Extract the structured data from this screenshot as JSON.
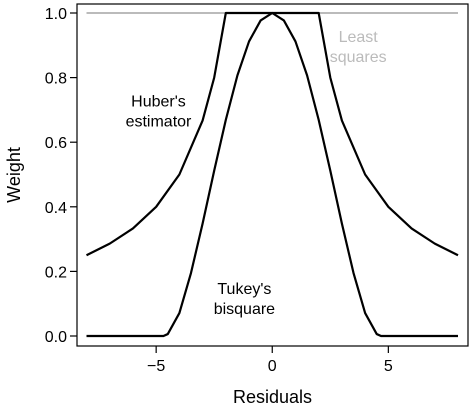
{
  "chart_data": {
    "type": "line",
    "xlabel": "Residuals",
    "ylabel": "Weight",
    "xlim": [
      -8,
      8
    ],
    "ylim": [
      0,
      1
    ],
    "xticks": [
      -5,
      0,
      5
    ],
    "xtick_labels": [
      "−5",
      "0",
      "5"
    ],
    "yticks": [
      0,
      0.2,
      0.4,
      0.6,
      0.8,
      1.0
    ],
    "ytick_labels": [
      "0.0",
      "0.2",
      "0.4",
      "0.6",
      "0.8",
      "1.0"
    ],
    "grid": false,
    "series": [
      {
        "name": "Least squares",
        "color": "#bbbbbb",
        "x": [
          -8,
          8
        ],
        "y": [
          1,
          1
        ]
      },
      {
        "name": "Huber's estimator",
        "color": "#000000",
        "x": [
          -8,
          -7,
          -6,
          -5,
          -4,
          -3,
          -2.5,
          -2,
          2,
          2.5,
          3,
          4,
          5,
          6,
          7,
          8
        ],
        "y": [
          0.25,
          0.286,
          0.333,
          0.4,
          0.5,
          0.667,
          0.8,
          1.0,
          1.0,
          0.8,
          0.667,
          0.5,
          0.4,
          0.333,
          0.286,
          0.25
        ]
      },
      {
        "name": "Tukey's bisquare",
        "color": "#000000",
        "x": [
          -8,
          -4.685,
          -4.5,
          -4,
          -3.5,
          -3,
          -2.5,
          -2,
          -1.5,
          -1,
          -0.5,
          0,
          0.5,
          1,
          1.5,
          2,
          2.5,
          3,
          3.5,
          4,
          4.5,
          4.685,
          8
        ],
        "y": [
          0,
          0,
          0.006,
          0.071,
          0.195,
          0.348,
          0.512,
          0.669,
          0.807,
          0.912,
          0.977,
          1.0,
          0.977,
          0.912,
          0.807,
          0.669,
          0.512,
          0.348,
          0.195,
          0.071,
          0.006,
          0,
          0
        ]
      }
    ],
    "annotations": [
      {
        "lines": [
          "Least",
          "squares"
        ],
        "color": "#bbbbbb",
        "x": 3.7,
        "y": 0.91
      },
      {
        "lines": [
          "Huber's",
          "estimator"
        ],
        "color": "#000000",
        "x": -4.9,
        "y": 0.71
      },
      {
        "lines": [
          "Tukey's",
          "bisquare"
        ],
        "color": "#000000",
        "x": -1.2,
        "y": 0.13
      }
    ]
  }
}
